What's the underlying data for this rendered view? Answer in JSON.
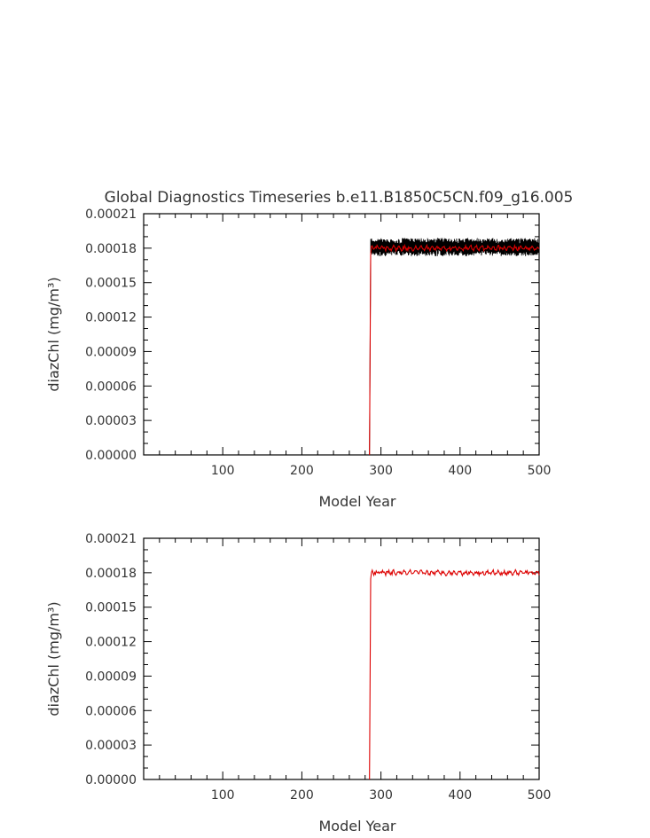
{
  "chart_data": [
    {
      "type": "line",
      "title": "Global Diagnostics Timeseries b.e11.B1850C5CN.f09_g16.005",
      "xlabel": "Model Year",
      "ylabel": "diazChl (mg/m³)",
      "xlim": [
        0,
        500
      ],
      "ylim": [
        0,
        0.00021
      ],
      "xticks": [
        100,
        200,
        300,
        400,
        500
      ],
      "yticks": [
        "0.00000",
        "0.00003",
        "0.00006",
        "0.00009",
        "0.00012",
        "0.00015",
        "0.00018",
        "0.00021"
      ],
      "jump_year": 286,
      "series": [
        {
          "color": "#000000",
          "kind": "monthly",
          "x_start": 286,
          "x_end": 500,
          "start_value": 0.0,
          "plateau_value": 0.000181,
          "amplitude": 8e-06
        },
        {
          "color": "#dd0000",
          "kind": "annual",
          "x_start": 286,
          "x_end": 500,
          "start_value": 0.0,
          "plateau_value": 0.00018,
          "amplitude": 2.5e-06
        }
      ],
      "grid": false,
      "legend": "none"
    },
    {
      "type": "line",
      "title": "",
      "xlabel": "Model Year",
      "ylabel": "diazChl (mg/m³)",
      "xlim": [
        0,
        500
      ],
      "ylim": [
        0,
        0.00021
      ],
      "xticks": [
        100,
        200,
        300,
        400,
        500
      ],
      "yticks": [
        "0.00000",
        "0.00003",
        "0.00006",
        "0.00009",
        "0.00012",
        "0.00015",
        "0.00018",
        "0.00021"
      ],
      "jump_year": 286,
      "series": [
        {
          "color": "#dd0000",
          "kind": "annual",
          "x_start": 286,
          "x_end": 500,
          "start_value": 0.0,
          "plateau_value": 0.00018,
          "amplitude": 2.5e-06
        }
      ],
      "grid": false,
      "legend": "none"
    }
  ]
}
